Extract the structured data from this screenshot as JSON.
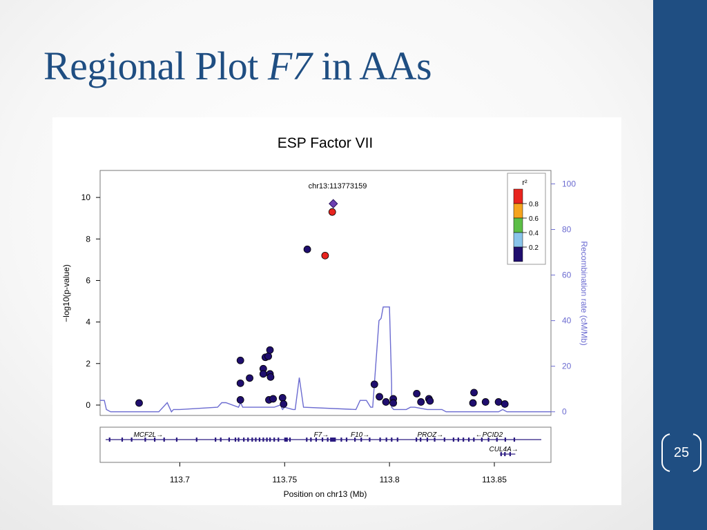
{
  "slide": {
    "title_pre": "Regional Plot",
    "title_italic": "F7",
    "title_post": "in AAs",
    "page_number": "25"
  },
  "colors": {
    "sidebar": "#1f4e82",
    "title": "#1f4e82",
    "recomb_line": "#6a6ad0",
    "point": "#1f0e6e"
  },
  "chart_data": {
    "type": "scatter",
    "title": "ESP Factor VII",
    "xlabel": "Position on chr13 (Mb)",
    "ylabel": "−log10(p-value)",
    "y2label": "Recombination rate (cM/Mb)",
    "xlim": [
      113.662,
      113.877
    ],
    "ylim": [
      -0.5,
      11.3
    ],
    "y2lim": [
      -1.6,
      105.9
    ],
    "x_ticks": [
      "113.7",
      "113.75",
      "113.8",
      "113.85"
    ],
    "x_tick_values": [
      113.7,
      113.75,
      113.8,
      113.85
    ],
    "y_ticks": [
      "0",
      "2",
      "4",
      "6",
      "8",
      "10"
    ],
    "y_tick_values": [
      0,
      2,
      4,
      6,
      8,
      10
    ],
    "y2_ticks": [
      "0",
      "20",
      "40",
      "60",
      "80",
      "100"
    ],
    "y2_tick_values": [
      0,
      20,
      40,
      60,
      80,
      100
    ],
    "lead_snp": {
      "label": "chr13:113773159",
      "x": 113.7732,
      "y": 9.7
    },
    "legend": {
      "title": "r²",
      "position": "top-right",
      "bins": [
        {
          "color": "#e8241e",
          "label": "0.8"
        },
        {
          "color": "#f5a41e",
          "label": "0.6"
        },
        {
          "color": "#5cbe46",
          "label": "0.4"
        },
        {
          "color": "#89c4ea",
          "label": "0.2"
        },
        {
          "color": "#1f0e6e",
          "label": ""
        }
      ]
    },
    "points": [
      {
        "x": 113.7732,
        "y": 9.7,
        "r2": "lead"
      },
      {
        "x": 113.7727,
        "y": 9.3,
        "r2": 0.8
      },
      {
        "x": 113.7693,
        "y": 7.2,
        "r2": 0.8
      },
      {
        "x": 113.7608,
        "y": 7.5,
        "r2": 0
      },
      {
        "x": 113.6806,
        "y": 0.1,
        "r2": 0
      },
      {
        "x": 113.7289,
        "y": 2.15,
        "r2": 0
      },
      {
        "x": 113.7289,
        "y": 1.05,
        "r2": 0
      },
      {
        "x": 113.7289,
        "y": 0.25,
        "r2": 0
      },
      {
        "x": 113.7333,
        "y": 1.3,
        "r2": 0
      },
      {
        "x": 113.7398,
        "y": 1.75,
        "r2": 0
      },
      {
        "x": 113.7398,
        "y": 1.5,
        "r2": 0
      },
      {
        "x": 113.7408,
        "y": 2.3,
        "r2": 0
      },
      {
        "x": 113.7422,
        "y": 2.35,
        "r2": 0
      },
      {
        "x": 113.743,
        "y": 2.65,
        "r2": 0
      },
      {
        "x": 113.743,
        "y": 1.5,
        "r2": 0
      },
      {
        "x": 113.7433,
        "y": 1.35,
        "r2": 0
      },
      {
        "x": 113.7425,
        "y": 0.25,
        "r2": 0
      },
      {
        "x": 113.7445,
        "y": 0.3,
        "r2": 0
      },
      {
        "x": 113.749,
        "y": 0.35,
        "r2": 0
      },
      {
        "x": 113.7495,
        "y": 0.05,
        "r2": 0
      },
      {
        "x": 113.7928,
        "y": 1.0,
        "r2": 0
      },
      {
        "x": 113.7952,
        "y": 0.4,
        "r2": 0
      },
      {
        "x": 113.7983,
        "y": 0.15,
        "r2": 0
      },
      {
        "x": 113.8018,
        "y": 0.3,
        "r2": 0
      },
      {
        "x": 113.8018,
        "y": 0.1,
        "r2": 0
      },
      {
        "x": 113.813,
        "y": 0.55,
        "r2": 0
      },
      {
        "x": 113.815,
        "y": 0.15,
        "r2": 0
      },
      {
        "x": 113.8188,
        "y": 0.3,
        "r2": 0
      },
      {
        "x": 113.8193,
        "y": 0.2,
        "r2": 0
      },
      {
        "x": 113.8398,
        "y": 0.1,
        "r2": 0
      },
      {
        "x": 113.8403,
        "y": 0.6,
        "r2": 0
      },
      {
        "x": 113.8458,
        "y": 0.15,
        "r2": 0
      },
      {
        "x": 113.852,
        "y": 0.15,
        "r2": 0
      },
      {
        "x": 113.855,
        "y": 0.05,
        "r2": 0
      }
    ],
    "recombination": {
      "x": [
        113.662,
        113.664,
        113.665,
        113.667,
        113.69,
        113.694,
        113.696,
        113.697,
        113.699,
        113.7,
        113.718,
        113.72,
        113.722,
        113.728,
        113.729,
        113.73,
        113.733,
        113.735,
        113.745,
        113.748,
        113.749,
        113.75,
        113.754,
        113.755,
        113.757,
        113.759,
        113.784,
        113.786,
        113.789,
        113.791,
        113.791,
        113.792,
        113.795,
        113.796,
        113.797,
        113.799,
        113.8,
        113.801,
        113.801,
        113.802,
        113.808,
        113.81,
        113.812,
        113.818,
        113.825,
        113.827,
        113.852,
        113.854,
        113.856,
        113.877
      ],
      "y": [
        5,
        5,
        1,
        0,
        0,
        4,
        0,
        1,
        1,
        1,
        2,
        4,
        4,
        2,
        4,
        2,
        2,
        2,
        2,
        3,
        1,
        2,
        1,
        1,
        15,
        2,
        1,
        5,
        5,
        2,
        2,
        2,
        40,
        41,
        46,
        46,
        46,
        12,
        2,
        1,
        1,
        2,
        2,
        1,
        1,
        0,
        0,
        1,
        0,
        0
      ]
    },
    "genes": [
      {
        "name": "MCF2L",
        "dir": "→",
        "label_x": 113.685,
        "row": 0
      },
      {
        "name": "F7",
        "dir": "→",
        "label_x": 113.7675,
        "row": 0
      },
      {
        "name": "F10",
        "dir": "→",
        "label_x": 113.786,
        "row": 0
      },
      {
        "name": "PROZ",
        "dir": "→",
        "label_x": 113.8195,
        "row": 0
      },
      {
        "name": "PCID2",
        "dir": "←",
        "label_x": 113.8475,
        "row": 0
      },
      {
        "name": "CUL4A",
        "dir": "→",
        "label_x": 113.8545,
        "row": 1
      }
    ]
  }
}
